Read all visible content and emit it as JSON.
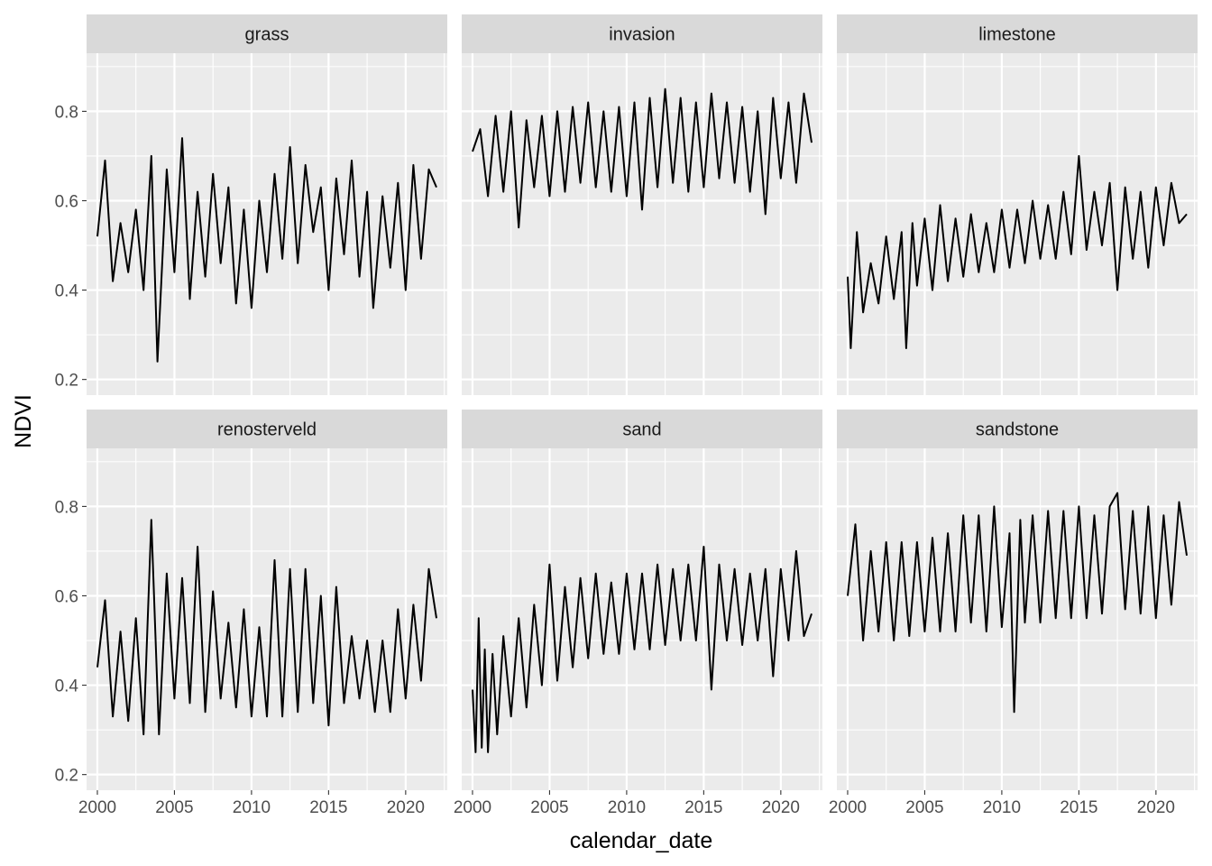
{
  "chart_data": {
    "type": "line",
    "facet_wrap": {
      "ncol": 3,
      "nrow": 2
    },
    "xlabel": "calendar_date",
    "ylabel": "NDVI",
    "xlim": [
      1999.3,
      2022.7
    ],
    "ylim": [
      0.165,
      0.93
    ],
    "x_ticks": [
      2000,
      2005,
      2010,
      2015,
      2020
    ],
    "x_tick_labels": [
      "2000",
      "2005",
      "2010",
      "2015",
      "2020"
    ],
    "y_ticks": [
      0.2,
      0.4,
      0.6,
      0.8
    ],
    "y_tick_labels": [
      "0.2",
      "0.4",
      "0.6",
      "0.8"
    ],
    "grid": true,
    "legend": "none",
    "colors": {
      "panel_background": "#EBEBEB",
      "strip_background": "#D9D9D9",
      "grid_major": "#FFFFFF",
      "line": "#000000",
      "tick_text": "#4D4D4D"
    },
    "series": [
      {
        "name": "grass",
        "x": [
          2000.0,
          2000.5,
          2001.0,
          2001.5,
          2002.0,
          2002.5,
          2003.0,
          2003.5,
          2003.9,
          2004.5,
          2005.0,
          2005.5,
          2006.0,
          2006.5,
          2007.0,
          2007.5,
          2008.0,
          2008.5,
          2009.0,
          2009.5,
          2010.0,
          2010.5,
          2011.0,
          2011.5,
          2012.0,
          2012.5,
          2013.0,
          2013.5,
          2014.0,
          2014.5,
          2015.0,
          2015.5,
          2016.0,
          2016.5,
          2017.0,
          2017.5,
          2017.9,
          2018.5,
          2019.0,
          2019.5,
          2020.0,
          2020.5,
          2021.0,
          2021.5,
          2022.0
        ],
        "y": [
          0.52,
          0.69,
          0.42,
          0.55,
          0.44,
          0.58,
          0.4,
          0.7,
          0.24,
          0.67,
          0.44,
          0.74,
          0.38,
          0.62,
          0.43,
          0.66,
          0.46,
          0.63,
          0.37,
          0.58,
          0.36,
          0.6,
          0.44,
          0.66,
          0.47,
          0.72,
          0.46,
          0.68,
          0.53,
          0.63,
          0.4,
          0.65,
          0.48,
          0.69,
          0.43,
          0.62,
          0.36,
          0.61,
          0.45,
          0.64,
          0.4,
          0.68,
          0.47,
          0.67,
          0.63
        ]
      },
      {
        "name": "invasion",
        "x": [
          2000.0,
          2000.5,
          2001.0,
          2001.5,
          2002.0,
          2002.5,
          2003.0,
          2003.5,
          2004.0,
          2004.5,
          2005.0,
          2005.5,
          2006.0,
          2006.5,
          2007.0,
          2007.5,
          2008.0,
          2008.5,
          2009.0,
          2009.5,
          2010.0,
          2010.5,
          2011.0,
          2011.5,
          2012.0,
          2012.5,
          2013.0,
          2013.5,
          2014.0,
          2014.5,
          2015.0,
          2015.5,
          2016.0,
          2016.5,
          2017.0,
          2017.5,
          2018.0,
          2018.5,
          2019.0,
          2019.5,
          2020.0,
          2020.5,
          2021.0,
          2021.5,
          2022.0
        ],
        "y": [
          0.71,
          0.76,
          0.61,
          0.79,
          0.62,
          0.8,
          0.54,
          0.78,
          0.63,
          0.79,
          0.61,
          0.8,
          0.62,
          0.81,
          0.64,
          0.82,
          0.63,
          0.8,
          0.62,
          0.81,
          0.61,
          0.82,
          0.58,
          0.83,
          0.63,
          0.85,
          0.64,
          0.83,
          0.62,
          0.82,
          0.63,
          0.84,
          0.65,
          0.82,
          0.64,
          0.81,
          0.62,
          0.8,
          0.57,
          0.83,
          0.65,
          0.82,
          0.64,
          0.84,
          0.73
        ]
      },
      {
        "name": "limestone",
        "x": [
          2000.0,
          2000.2,
          2000.6,
          2001.0,
          2001.5,
          2002.0,
          2002.5,
          2003.0,
          2003.5,
          2003.8,
          2004.2,
          2004.5,
          2005.0,
          2005.5,
          2006.0,
          2006.5,
          2007.0,
          2007.5,
          2008.0,
          2008.5,
          2009.0,
          2009.5,
          2010.0,
          2010.5,
          2011.0,
          2011.5,
          2012.0,
          2012.5,
          2013.0,
          2013.5,
          2014.0,
          2014.5,
          2015.0,
          2015.5,
          2016.0,
          2016.5,
          2017.0,
          2017.5,
          2018.0,
          2018.5,
          2019.0,
          2019.5,
          2020.0,
          2020.5,
          2021.0,
          2021.5,
          2022.0
        ],
        "y": [
          0.43,
          0.27,
          0.53,
          0.35,
          0.46,
          0.37,
          0.52,
          0.38,
          0.53,
          0.27,
          0.55,
          0.41,
          0.56,
          0.4,
          0.59,
          0.42,
          0.56,
          0.43,
          0.57,
          0.44,
          0.55,
          0.44,
          0.58,
          0.45,
          0.58,
          0.46,
          0.6,
          0.47,
          0.59,
          0.47,
          0.62,
          0.48,
          0.7,
          0.49,
          0.62,
          0.5,
          0.64,
          0.4,
          0.63,
          0.47,
          0.62,
          0.45,
          0.63,
          0.5,
          0.64,
          0.55,
          0.57
        ]
      },
      {
        "name": "renosterveld",
        "x": [
          2000.0,
          2000.5,
          2001.0,
          2001.5,
          2002.0,
          2002.5,
          2003.0,
          2003.5,
          2004.0,
          2004.5,
          2005.0,
          2005.5,
          2006.0,
          2006.5,
          2007.0,
          2007.5,
          2008.0,
          2008.5,
          2009.0,
          2009.5,
          2010.0,
          2010.5,
          2011.0,
          2011.5,
          2012.0,
          2012.5,
          2013.0,
          2013.5,
          2014.0,
          2014.5,
          2015.0,
          2015.5,
          2016.0,
          2016.5,
          2017.0,
          2017.5,
          2018.0,
          2018.5,
          2019.0,
          2019.5,
          2020.0,
          2020.5,
          2021.0,
          2021.5,
          2022.0
        ],
        "y": [
          0.44,
          0.59,
          0.33,
          0.52,
          0.32,
          0.55,
          0.29,
          0.77,
          0.29,
          0.65,
          0.37,
          0.64,
          0.36,
          0.71,
          0.34,
          0.61,
          0.37,
          0.54,
          0.35,
          0.57,
          0.33,
          0.53,
          0.33,
          0.68,
          0.33,
          0.66,
          0.34,
          0.66,
          0.36,
          0.6,
          0.31,
          0.62,
          0.36,
          0.51,
          0.37,
          0.5,
          0.34,
          0.5,
          0.34,
          0.57,
          0.37,
          0.58,
          0.41,
          0.66,
          0.55
        ]
      },
      {
        "name": "sand",
        "x": [
          2000.0,
          2000.2,
          2000.4,
          2000.6,
          2000.8,
          2001.0,
          2001.3,
          2001.6,
          2002.0,
          2002.5,
          2003.0,
          2003.5,
          2004.0,
          2004.5,
          2005.0,
          2005.5,
          2006.0,
          2006.5,
          2007.0,
          2007.5,
          2008.0,
          2008.5,
          2009.0,
          2009.5,
          2010.0,
          2010.5,
          2011.0,
          2011.5,
          2012.0,
          2012.5,
          2013.0,
          2013.5,
          2014.0,
          2014.5,
          2015.0,
          2015.5,
          2016.0,
          2016.5,
          2017.0,
          2017.5,
          2018.0,
          2018.5,
          2019.0,
          2019.5,
          2020.0,
          2020.5,
          2021.0,
          2021.5,
          2022.0
        ],
        "y": [
          0.39,
          0.25,
          0.55,
          0.26,
          0.48,
          0.25,
          0.47,
          0.29,
          0.51,
          0.33,
          0.55,
          0.35,
          0.58,
          0.4,
          0.67,
          0.41,
          0.62,
          0.44,
          0.64,
          0.46,
          0.65,
          0.47,
          0.63,
          0.47,
          0.65,
          0.48,
          0.65,
          0.48,
          0.67,
          0.49,
          0.66,
          0.5,
          0.67,
          0.5,
          0.71,
          0.39,
          0.67,
          0.5,
          0.66,
          0.49,
          0.65,
          0.5,
          0.66,
          0.42,
          0.66,
          0.5,
          0.7,
          0.51,
          0.56
        ]
      },
      {
        "name": "sandstone",
        "x": [
          2000.0,
          2000.5,
          2001.0,
          2001.5,
          2002.0,
          2002.5,
          2003.0,
          2003.5,
          2004.0,
          2004.5,
          2005.0,
          2005.5,
          2006.0,
          2006.5,
          2007.0,
          2007.5,
          2008.0,
          2008.5,
          2009.0,
          2009.5,
          2010.0,
          2010.5,
          2010.8,
          2011.2,
          2011.5,
          2012.0,
          2012.5,
          2013.0,
          2013.5,
          2014.0,
          2014.5,
          2015.0,
          2015.5,
          2016.0,
          2016.5,
          2017.0,
          2017.5,
          2018.0,
          2018.5,
          2019.0,
          2019.5,
          2020.0,
          2020.5,
          2021.0,
          2021.5,
          2022.0
        ],
        "y": [
          0.6,
          0.76,
          0.5,
          0.7,
          0.52,
          0.72,
          0.5,
          0.72,
          0.51,
          0.72,
          0.52,
          0.73,
          0.52,
          0.74,
          0.52,
          0.78,
          0.54,
          0.78,
          0.52,
          0.8,
          0.53,
          0.74,
          0.34,
          0.77,
          0.54,
          0.78,
          0.54,
          0.79,
          0.55,
          0.79,
          0.55,
          0.8,
          0.55,
          0.78,
          0.56,
          0.8,
          0.83,
          0.57,
          0.79,
          0.56,
          0.8,
          0.55,
          0.78,
          0.58,
          0.81,
          0.69
        ]
      }
    ]
  }
}
